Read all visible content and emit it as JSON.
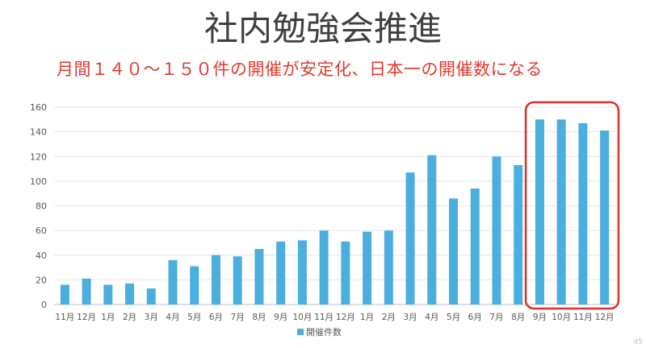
{
  "slide": {
    "title": "社内勉強会推進",
    "subtitle": "月間１４０～１５０件の開催が安定化、日本一の開催数になる",
    "page_number": "45"
  },
  "colors": {
    "bar": "#4aaedf",
    "highlight_box": "#d9312b",
    "grid": "#e6e6e6",
    "axis_text": "#595959"
  },
  "chart_data": {
    "type": "bar",
    "title": "",
    "xlabel": "",
    "ylabel": "",
    "ylim": [
      0,
      160
    ],
    "yticks": [
      0,
      20,
      40,
      60,
      80,
      100,
      120,
      140,
      160
    ],
    "grid": true,
    "legend": "bottom-center",
    "categories": [
      "11月",
      "12月",
      "1月",
      "2月",
      "3月",
      "4月",
      "5月",
      "6月",
      "7月",
      "8月",
      "9月",
      "10月",
      "11月",
      "12月",
      "1月",
      "2月",
      "3月",
      "4月",
      "5月",
      "6月",
      "7月",
      "8月",
      "9月",
      "10月",
      "11月",
      "12月"
    ],
    "series": [
      {
        "name": "開催件数",
        "values": [
          16,
          21,
          16,
          17,
          13,
          36,
          31,
          40,
          39,
          45,
          51,
          52,
          60,
          51,
          59,
          60,
          107,
          121,
          86,
          94,
          120,
          113,
          150,
          150,
          147,
          141
        ]
      }
    ],
    "highlight": {
      "from_index": 22,
      "to_index": 25
    }
  }
}
